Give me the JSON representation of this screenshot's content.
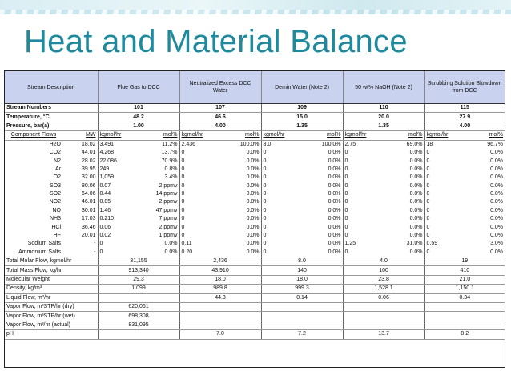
{
  "title": "Heat and Material Balance",
  "header": {
    "stream_description": "Stream Description",
    "columns": [
      "Flue Gas to DCC",
      "Neutralized Excess DCC Water",
      "Demin Water (Note 2)",
      "50 wt% NaOH (Note 2)",
      "Scrubbing Solution Blowdown from DCC"
    ]
  },
  "summary_rows": [
    {
      "label": "Stream Numbers",
      "values": [
        "101",
        "107",
        "109",
        "110",
        "115"
      ]
    },
    {
      "label": "Temperature, °C",
      "values": [
        "48.2",
        "46.6",
        "15.0",
        "20.0",
        "27.9"
      ]
    },
    {
      "label": "Pressure, bar(a)",
      "values": [
        "1.00",
        "4.00",
        "1.35",
        "1.35",
        "4.00"
      ]
    }
  ],
  "component_header": {
    "label": "Component Flows",
    "mw": "MW",
    "kgmol": "kgmol/hr",
    "molpct": "mol%"
  },
  "components": [
    {
      "name": "H2O",
      "mw": "18.02",
      "v": [
        "3,491",
        "11.2%",
        "2,436",
        "100.0%",
        "8.0",
        "100.0%",
        "2.75",
        "69.0%",
        "18",
        "96.7%"
      ]
    },
    {
      "name": "CO2",
      "mw": "44.01",
      "v": [
        "4,268",
        "13.7%",
        "0",
        "0.0%",
        "0",
        "0.0%",
        "0",
        "0.0%",
        "0",
        "0.0%"
      ]
    },
    {
      "name": "N2",
      "mw": "28.02",
      "v": [
        "22,086",
        "70.9%",
        "0",
        "0.0%",
        "0",
        "0.0%",
        "0",
        "0.0%",
        "0",
        "0.0%"
      ]
    },
    {
      "name": "Ar",
      "mw": "39.95",
      "v": [
        "249",
        "0.8%",
        "0",
        "0.0%",
        "0",
        "0.0%",
        "0",
        "0.0%",
        "0",
        "0.0%"
      ]
    },
    {
      "name": "O2",
      "mw": "32.00",
      "v": [
        "1,059",
        "3.4%",
        "0",
        "0.0%",
        "0",
        "0.0%",
        "0",
        "0.0%",
        "0",
        "0.0%"
      ]
    },
    {
      "name": "SO3",
      "mw": "80.06",
      "v": [
        "0.07",
        "2 ppmv",
        "0",
        "0.0%",
        "0",
        "0.0%",
        "0",
        "0.0%",
        "0",
        "0.0%"
      ]
    },
    {
      "name": "SO2",
      "mw": "64.06",
      "v": [
        "0.44",
        "14 ppmv",
        "0",
        "0.0%",
        "0",
        "0.0%",
        "0",
        "0.0%",
        "0",
        "0.0%"
      ]
    },
    {
      "name": "NO2",
      "mw": "46.01",
      "v": [
        "0.05",
        "2 ppmv",
        "0",
        "0.0%",
        "0",
        "0.0%",
        "0",
        "0.0%",
        "0",
        "0.0%"
      ]
    },
    {
      "name": "NO",
      "mw": "30.01",
      "v": [
        "1.46",
        "47 ppmv",
        "0",
        "0.0%",
        "0",
        "0.0%",
        "0",
        "0.0%",
        "0",
        "0.0%"
      ]
    },
    {
      "name": "NH3",
      "mw": "17.03",
      "v": [
        "0.210",
        "7 ppmv",
        "0",
        "0.0%",
        "0",
        "0.0%",
        "0",
        "0.0%",
        "0",
        "0.0%"
      ]
    },
    {
      "name": "HCl",
      "mw": "36.46",
      "v": [
        "0.06",
        "2 ppmv",
        "0",
        "0.0%",
        "0",
        "0.0%",
        "0",
        "0.0%",
        "0",
        "0.0%"
      ]
    },
    {
      "name": "HF",
      "mw": "20.01",
      "v": [
        "0.02",
        "1 ppmv",
        "0",
        "0.0%",
        "0",
        "0.0%",
        "0",
        "0.0%",
        "0",
        "0.0%"
      ]
    },
    {
      "name": "Sodium Salts",
      "mw": "-",
      "v": [
        "0",
        "0.0%",
        "0.11",
        "0.0%",
        "0",
        "0.0%",
        "1.25",
        "31.0%",
        "0.59",
        "3.0%"
      ]
    },
    {
      "name": "Ammonium Salts",
      "mw": "-",
      "v": [
        "0",
        "0.0%",
        "0.20",
        "0.0%",
        "0",
        "0.0%",
        "0",
        "0.0%",
        "0",
        "0.0%"
      ]
    }
  ],
  "totals": [
    {
      "label": "Total Molar Flow, kgmol/hr",
      "values": [
        "31,155",
        "2,436",
        "8.0",
        "4.0",
        "19"
      ]
    },
    {
      "label": "Total Mass Flow, kg/hr",
      "values": [
        "913,340",
        "43,910",
        "140",
        "100",
        "410"
      ]
    },
    {
      "label": "Molecular Weight",
      "values": [
        "29.3",
        "18.0",
        "18.0",
        "23.8",
        "21.0"
      ]
    },
    {
      "label": "Density, kg/m³",
      "values": [
        "1.099",
        "989.8",
        "999.3",
        "1,528.1",
        "1,150.1"
      ]
    },
    {
      "label": "Liquid Flow, m³/hr",
      "values": [
        "",
        "44.3",
        "0.14",
        "0.06",
        "0.34"
      ]
    },
    {
      "label": "Vapor Flow, m³STP/hr (dry)",
      "values": [
        "620,061",
        "",
        "",
        "",
        ""
      ]
    },
    {
      "label": "Vapor Flow, m³STP/hr (wet)",
      "values": [
        "698,308",
        "",
        "",
        "",
        ""
      ]
    },
    {
      "label": "Vapor Flow, m³/hr (actual)",
      "values": [
        "831,095",
        "",
        "",
        "",
        ""
      ]
    },
    {
      "label": "pH",
      "values": [
        "",
        "7.0",
        "7.2",
        "13.7",
        "8.2"
      ]
    }
  ]
}
